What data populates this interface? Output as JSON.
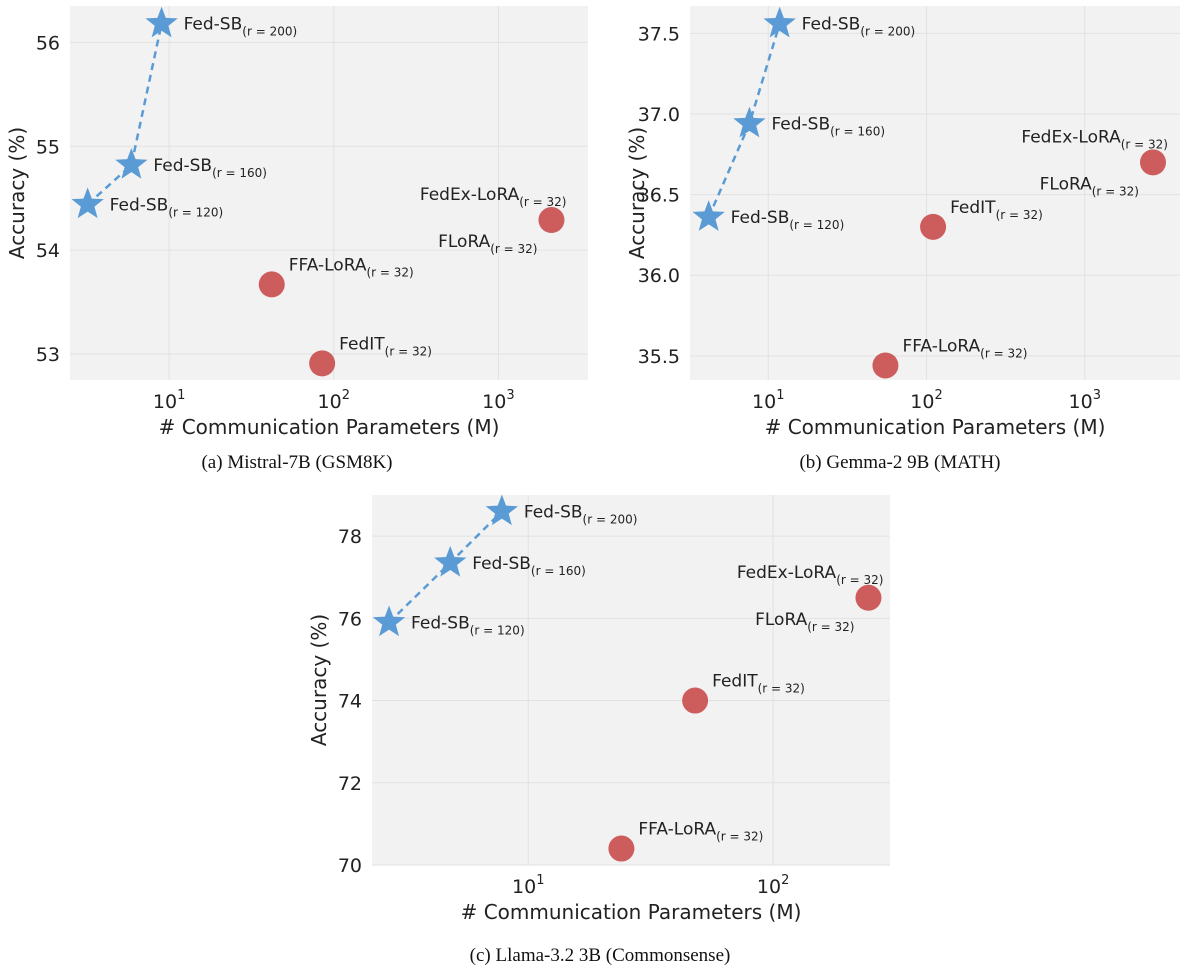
{
  "chart_data": [
    {
      "type": "scatter",
      "caption": "(a) Mistral-7B (GSM8K)",
      "xlabel": "# Communication Parameters (M)",
      "ylabel": "Accuracy (%)",
      "xscale": "log",
      "xlim": [
        2.5,
        3500
      ],
      "ylim": [
        52.75,
        56.35
      ],
      "yticks": [
        53,
        54,
        55,
        56
      ],
      "xticks": [
        {
          "v": 10,
          "base": "10",
          "exp": "1"
        },
        {
          "v": 100,
          "base": "10",
          "exp": "2"
        },
        {
          "v": 1000,
          "base": "10",
          "exp": "3"
        }
      ],
      "grid": true,
      "series": [
        {
          "marker": "star",
          "color": "#5b9bd5",
          "connected": true,
          "points": [
            {
              "x": 3.2,
              "y": 54.44,
              "label": "Fed-SB",
              "sub": "(r = 120)",
              "pos": "right"
            },
            {
              "x": 5.9,
              "y": 54.82,
              "label": "Fed-SB",
              "sub": "(r = 160)",
              "pos": "right"
            },
            {
              "x": 9.0,
              "y": 56.18,
              "label": "Fed-SB",
              "sub": "(r = 200)",
              "pos": "right"
            }
          ]
        },
        {
          "marker": "circle",
          "color": "#cd5c5c",
          "connected": false,
          "points": [
            {
              "x": 42,
              "y": 53.67,
              "label": "FFA-LoRA",
              "sub": "(r = 32)",
              "pos": "upright"
            },
            {
              "x": 85,
              "y": 52.91,
              "label": "FedIT",
              "sub": "(r = 32)",
              "pos": "upright"
            },
            {
              "x": 2100,
              "y": 54.29,
              "label": "FedEx-LoRA",
              "sub": "(r = 32)",
              "pos": "aboveleft",
              "label2": "FLoRA",
              "sub2": "(r = 32)"
            }
          ]
        }
      ]
    },
    {
      "type": "scatter",
      "caption": "(b) Gemma-2 9B (MATH)",
      "xlabel": "# Communication Parameters (M)",
      "ylabel": "Accuracy (%)",
      "xscale": "log",
      "xlim": [
        3.2,
        4000
      ],
      "ylim": [
        35.35,
        37.67
      ],
      "yticks": [
        35.5,
        36.0,
        36.5,
        37.0,
        37.5
      ],
      "ytickfmt": 1,
      "xticks": [
        {
          "v": 10,
          "base": "10",
          "exp": "1"
        },
        {
          "v": 100,
          "base": "10",
          "exp": "2"
        },
        {
          "v": 1000,
          "base": "10",
          "exp": "3"
        }
      ],
      "grid": true,
      "series": [
        {
          "marker": "star",
          "color": "#5b9bd5",
          "connected": true,
          "points": [
            {
              "x": 4.2,
              "y": 36.36,
              "label": "Fed-SB",
              "sub": "(r = 120)",
              "pos": "right"
            },
            {
              "x": 7.6,
              "y": 36.94,
              "label": "Fed-SB",
              "sub": "(r = 160)",
              "pos": "right"
            },
            {
              "x": 11.8,
              "y": 37.56,
              "label": "Fed-SB",
              "sub": "(r = 200)",
              "pos": "right"
            }
          ]
        },
        {
          "marker": "circle",
          "color": "#cd5c5c",
          "connected": false,
          "points": [
            {
              "x": 55,
              "y": 35.44,
              "label": "FFA-LoRA",
              "sub": "(r = 32)",
              "pos": "upright"
            },
            {
              "x": 110,
              "y": 36.3,
              "label": "FedIT",
              "sub": "(r = 32)",
              "pos": "upright"
            },
            {
              "x": 2700,
              "y": 36.7,
              "label": "FedEx-LoRA",
              "sub": "(r = 32)",
              "pos": "aboveleft",
              "label2": "FLoRA",
              "sub2": "(r = 32)"
            }
          ]
        }
      ]
    },
    {
      "type": "scatter",
      "caption": "(c) Llama-3.2 3B (Commonsense)",
      "xlabel": "# Communication Parameters (M)",
      "ylabel": "Accuracy (%)",
      "xscale": "log",
      "xlim": [
        2.3,
        300
      ],
      "ylim": [
        70.0,
        79.0
      ],
      "yticks": [
        70,
        72,
        74,
        76,
        78
      ],
      "xticks": [
        {
          "v": 10,
          "base": "10",
          "exp": "1"
        },
        {
          "v": 100,
          "base": "10",
          "exp": "2"
        }
      ],
      "grid": true,
      "series": [
        {
          "marker": "star",
          "color": "#5b9bd5",
          "connected": true,
          "points": [
            {
              "x": 2.7,
              "y": 75.9,
              "label": "Fed-SB",
              "sub": "(r = 120)",
              "pos": "right"
            },
            {
              "x": 4.8,
              "y": 77.35,
              "label": "Fed-SB",
              "sub": "(r = 160)",
              "pos": "right"
            },
            {
              "x": 7.8,
              "y": 78.6,
              "label": "Fed-SB",
              "sub": "(r = 200)",
              "pos": "right"
            }
          ]
        },
        {
          "marker": "circle",
          "color": "#cd5c5c",
          "connected": false,
          "points": [
            {
              "x": 24,
              "y": 70.4,
              "label": "FFA-LoRA",
              "sub": "(r = 32)",
              "pos": "upright"
            },
            {
              "x": 48,
              "y": 74.0,
              "label": "FedIT",
              "sub": "(r = 32)",
              "pos": "upright"
            },
            {
              "x": 245,
              "y": 76.5,
              "label": "FedEx-LoRA",
              "sub": "(r = 32)",
              "pos": "aboveleft",
              "label2": "FLoRA",
              "sub2": "(r = 32)"
            }
          ]
        }
      ]
    }
  ]
}
